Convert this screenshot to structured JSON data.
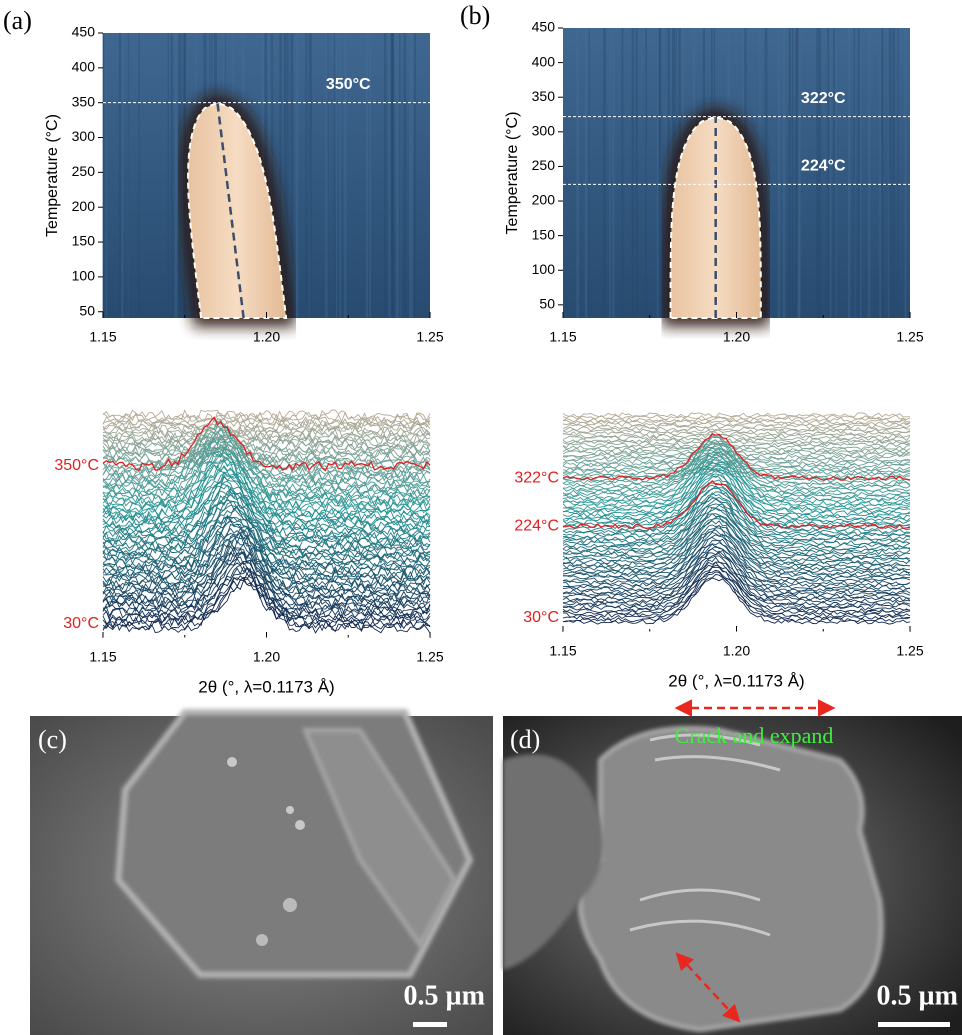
{
  "chart_data": [
    {
      "type": "heatmap",
      "panel_label": "(a)",
      "ylabel": "Temperature (°C)",
      "xlim": [
        1.15,
        1.25
      ],
      "xticks": [
        1.15,
        {
          "value": 1.2,
          "label": "1.20"
        },
        1.25
      ],
      "ylim": [
        41,
        450
      ],
      "yticks": [
        50,
        100,
        150,
        200,
        250,
        300,
        350,
        400,
        450
      ],
      "ridge": {
        "x": [
          1.193,
          1.185
        ],
        "y": [
          41,
          350
        ]
      },
      "markers": [
        {
          "value": 350,
          "label": "350°C"
        }
      ]
    },
    {
      "type": "waterfall",
      "xlabel": "2θ (°, λ=0.1173 Å)",
      "xlim": [
        1.15,
        1.25
      ],
      "xticks": [
        1.15,
        {
          "value": 1.2,
          "label": "1.20"
        },
        1.25
      ],
      "ylim": [
        30,
        450
      ],
      "markers": [
        {
          "value": 350,
          "label": "350°C"
        },
        {
          "value": 30,
          "label": "30°C"
        }
      ]
    },
    {
      "type": "heatmap",
      "panel_label": "(b)",
      "ylabel": "Temperature (°C)",
      "xlim": [
        1.15,
        1.25
      ],
      "xticks": [
        1.15,
        {
          "value": 1.2,
          "label": "1.20"
        },
        1.25
      ],
      "ylim": [
        31,
        450
      ],
      "yticks": [
        50,
        100,
        150,
        200,
        250,
        300,
        350,
        400,
        450
      ],
      "ridge": {
        "x": [
          1.194,
          1.194
        ],
        "y": [
          31,
          322
        ]
      },
      "markers": [
        {
          "value": 322,
          "label": "322°C"
        },
        {
          "value": 224,
          "label": "224°C"
        }
      ]
    },
    {
      "type": "waterfall",
      "xlabel": "2θ (°, λ=0.1173 Å)",
      "xlim": [
        1.15,
        1.25
      ],
      "xticks": [
        1.15,
        {
          "value": 1.2,
          "label": "1.20"
        },
        1.25
      ],
      "ylim": [
        30,
        450
      ],
      "markers": [
        {
          "value": 322,
          "label": "322°C"
        },
        {
          "value": 224,
          "label": "224°C"
        },
        {
          "value": 30,
          "label": "30°C"
        }
      ]
    }
  ],
  "images": [
    {
      "label": "(c)",
      "scale_bar": "0.5 µm"
    },
    {
      "label": "(d)",
      "scale_bar": "0.5 µm",
      "annotation": "Crack and expand"
    }
  ]
}
